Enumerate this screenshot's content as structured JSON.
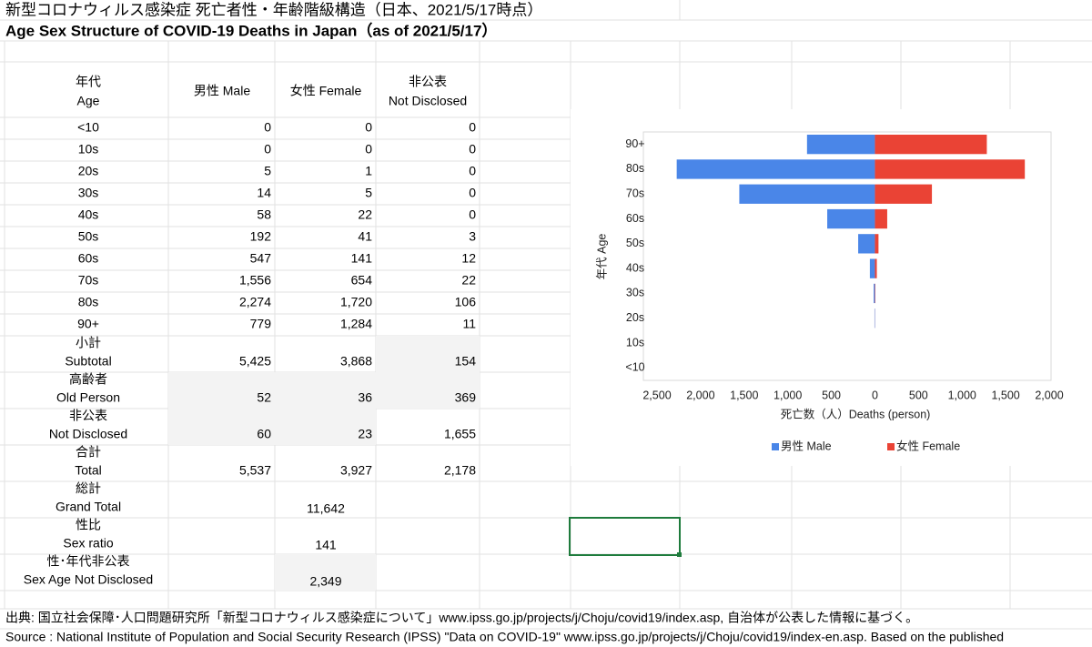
{
  "title": "新型コロナウィルス感染症 死亡者性・年齢階級構造（日本、2021/5/17時点）",
  "subtitle": "Age Sex Structure of COVID-19 Deaths in Japan（as of 2021/5/17）",
  "table": {
    "columns": [
      [
        "年代",
        "Age"
      ],
      [
        "男性 Male"
      ],
      [
        "女性 Female"
      ],
      [
        "非公表",
        "Not Disclosed"
      ]
    ],
    "rows": [
      [
        "<10",
        "0",
        "0",
        "0"
      ],
      [
        "10s",
        "0",
        "0",
        "0"
      ],
      [
        "20s",
        "5",
        "1",
        "0"
      ],
      [
        "30s",
        "14",
        "5",
        "0"
      ],
      [
        "40s",
        "58",
        "22",
        "0"
      ],
      [
        "50s",
        "192",
        "41",
        "3"
      ],
      [
        "60s",
        "547",
        "141",
        "12"
      ],
      [
        "70s",
        "1,556",
        "654",
        "22"
      ],
      [
        "80s",
        "2,274",
        "1,720",
        "106"
      ],
      [
        "90+",
        "779",
        "1,284",
        "11"
      ]
    ],
    "summary": [
      {
        "label": [
          "小計",
          "Subtotal"
        ],
        "cells": [
          "5,425",
          "3,868",
          "154"
        ]
      },
      {
        "label": [
          "高齢者",
          "Old Person"
        ],
        "cells": [
          "52",
          "36",
          "369"
        ]
      },
      {
        "label": [
          "非公表",
          "Not Disclosed"
        ],
        "cells": [
          "60",
          "23",
          "1,655"
        ]
      },
      {
        "label": [
          "合計",
          "Total"
        ],
        "cells": [
          "5,537",
          "3,927",
          "2,178"
        ]
      }
    ],
    "totals": [
      {
        "label": [
          "総計",
          "Grand Total"
        ],
        "value": "11,642"
      },
      {
        "label": [
          "性比",
          "Sex ratio"
        ],
        "value": "141"
      },
      {
        "label": [
          "性･年代非公表",
          "Sex Age Not Disclosed"
        ],
        "value": "2,349"
      }
    ]
  },
  "chart_data": {
    "type": "pyramid",
    "x_label": "死亡数（人）Deaths (person)",
    "y_label": "年代 Age",
    "categories": [
      "<10",
      "10s",
      "20s",
      "30s",
      "40s",
      "50s",
      "60s",
      "70s",
      "80s",
      "90+"
    ],
    "series": [
      {
        "name": "男性 Male",
        "color": "#4a86e8",
        "side": "left",
        "values": [
          0,
          0,
          5,
          14,
          58,
          192,
          547,
          1556,
          2274,
          779
        ]
      },
      {
        "name": "女性 Female",
        "color": "#ea4335",
        "side": "right",
        "values": [
          0,
          0,
          1,
          5,
          22,
          41,
          141,
          654,
          1720,
          1284
        ]
      }
    ],
    "xlim": [
      -2500,
      2000
    ],
    "xticks": [
      {
        "value": -2500,
        "label": "2,500"
      },
      {
        "value": -2000,
        "label": "2,000"
      },
      {
        "value": -1500,
        "label": "1,500"
      },
      {
        "value": -1000,
        "label": "1,000"
      },
      {
        "value": -500,
        "label": "500"
      },
      0,
      500,
      {
        "value": 1000,
        "label": "1,000"
      },
      {
        "value": 1500,
        "label": "1,500"
      },
      {
        "value": 2000,
        "label": "2,000"
      }
    ],
    "legend": "bottom"
  },
  "footnotes": [
    "出典: 国立社会保障･人口問題研究所「新型コロナウィルス感染症について」www.ipss.go.jp/projects/j/Choju/covid19/index.asp, 自治体が公表した情報に基づく。",
    "Source : National Institute of Population and Social Security Research (IPSS) \"Data on COVID-19\" www.ipss.go.jp/projects/j/Choju/covid19/index-en.asp. Based on the published"
  ]
}
